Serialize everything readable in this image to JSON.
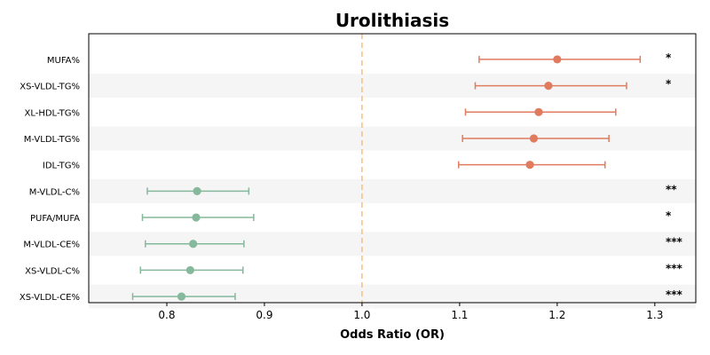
{
  "chart_data": {
    "type": "forest",
    "title": "Urolithiasis",
    "xlabel": "Odds Ratio (OR)",
    "xlim": [
      0.72,
      1.342
    ],
    "xticks": [
      "0.8",
      "0.9",
      "1.0",
      "1.1",
      "1.2",
      "1.3"
    ],
    "xtick_values": [
      0.8,
      0.9,
      1.0,
      1.1,
      1.2,
      1.3
    ],
    "reference_line": 1.0,
    "grid": false,
    "colors": {
      "risk": "#e07b5f",
      "protective": "#86b89c",
      "reference_line": "#f5c07a",
      "band": "#f5f5f5"
    },
    "rows": [
      {
        "label": "MUFA%",
        "or": 1.2,
        "ci_low": 1.12,
        "ci_high": 1.285,
        "significance": "*",
        "direction": "risk"
      },
      {
        "label": "XS-VLDL-TG%",
        "or": 1.191,
        "ci_low": 1.116,
        "ci_high": 1.271,
        "significance": "*",
        "direction": "risk"
      },
      {
        "label": "XL-HDL-TG%",
        "or": 1.181,
        "ci_low": 1.106,
        "ci_high": 1.26,
        "significance": "",
        "direction": "risk"
      },
      {
        "label": "M-VLDL-TG%",
        "or": 1.176,
        "ci_low": 1.103,
        "ci_high": 1.253,
        "significance": "",
        "direction": "risk"
      },
      {
        "label": "IDL-TG%",
        "or": 1.172,
        "ci_low": 1.099,
        "ci_high": 1.249,
        "significance": "",
        "direction": "risk"
      },
      {
        "label": "M-VLDL-C%",
        "or": 0.831,
        "ci_low": 0.78,
        "ci_high": 0.884,
        "significance": "**",
        "direction": "protective"
      },
      {
        "label": "PUFA/MUFA",
        "or": 0.83,
        "ci_low": 0.775,
        "ci_high": 0.889,
        "significance": "*",
        "direction": "protective"
      },
      {
        "label": "M-VLDL-CE%",
        "or": 0.827,
        "ci_low": 0.778,
        "ci_high": 0.879,
        "significance": "***",
        "direction": "protective"
      },
      {
        "label": "XS-VLDL-C%",
        "or": 0.824,
        "ci_low": 0.773,
        "ci_high": 0.878,
        "significance": "***",
        "direction": "protective"
      },
      {
        "label": "XS-VLDL-CE%",
        "or": 0.815,
        "ci_low": 0.765,
        "ci_high": 0.87,
        "significance": "***",
        "direction": "protective"
      }
    ]
  }
}
